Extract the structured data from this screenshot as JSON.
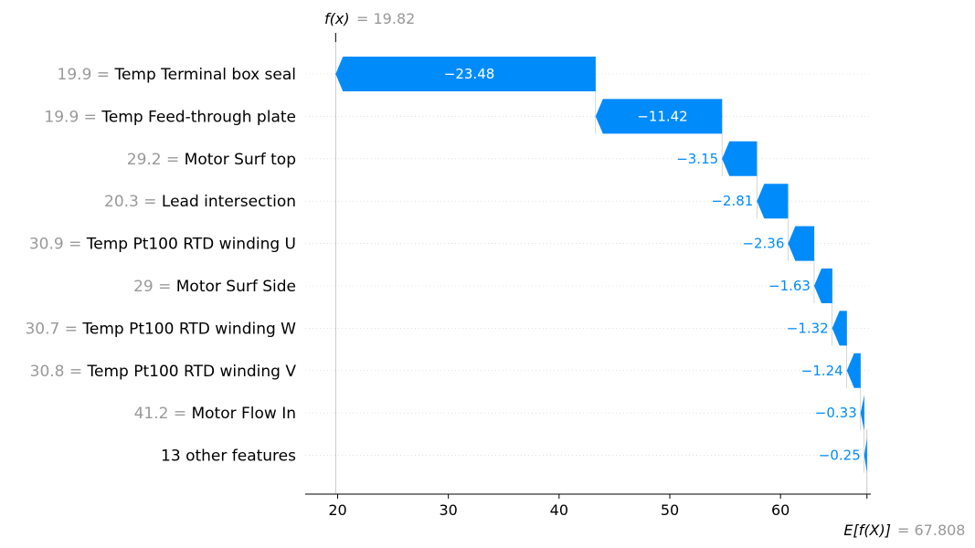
{
  "chart_data": {
    "type": "waterfall",
    "fx_label": "f(x)",
    "fx_value": "= 19.82",
    "ex_label": "E[f(X)]",
    "ex_value": "= 67.808",
    "base_value": 67.808,
    "final_value": 19.82,
    "xlim": [
      17,
      68.5
    ],
    "xticks": [
      20,
      30,
      40,
      50,
      60
    ],
    "features": [
      {
        "value": "19.9 =",
        "name": "Temp Terminal box seal",
        "shap": -23.48,
        "label": "−23.48"
      },
      {
        "value": "19.9 =",
        "name": "Temp Feed-through plate",
        "shap": -11.42,
        "label": "−11.42"
      },
      {
        "value": "29.2 =",
        "name": "Motor Surf top",
        "shap": -3.15,
        "label": "−3.15"
      },
      {
        "value": "20.3 =",
        "name": "Lead intersection",
        "shap": -2.81,
        "label": "−2.81"
      },
      {
        "value": "30.9 =",
        "name": "Temp Pt100 RTD winding U",
        "shap": -2.36,
        "label": "−2.36"
      },
      {
        "value": "29 =",
        "name": "Motor Surf Side",
        "shap": -1.63,
        "label": "−1.63"
      },
      {
        "value": "30.7 =",
        "name": "Temp Pt100 RTD winding W",
        "shap": -1.32,
        "label": "−1.32"
      },
      {
        "value": "30.8 =",
        "name": "Temp Pt100 RTD winding V",
        "shap": -1.24,
        "label": "−1.24"
      },
      {
        "value": "41.2 =",
        "name": "Motor Flow In",
        "shap": -0.33,
        "label": "−0.33"
      },
      {
        "value": "",
        "name": "13 other features",
        "shap": -0.25,
        "label": "−0.25"
      }
    ],
    "colors": {
      "negative": "#008bfb",
      "gray_text": "#999999",
      "axis": "#000000",
      "gridline": "#cccccc"
    }
  }
}
